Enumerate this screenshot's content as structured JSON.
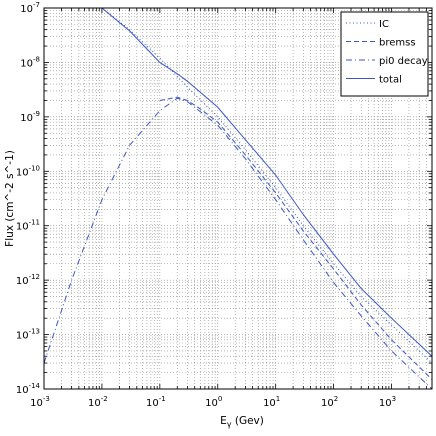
{
  "chart_data": {
    "type": "line",
    "title": "",
    "xlabel": {
      "base": "E",
      "subscript": "γ",
      "rest": " (Gev)"
    },
    "ylabel": "Flux (cm^-2 s^-1)",
    "xscale": "log",
    "yscale": "log",
    "xlim": [
      0.001,
      5000
    ],
    "ylim": [
      1e-14,
      1e-07
    ],
    "grid": true,
    "legend_position": "top-right",
    "x_ticks": [
      {
        "base": "10",
        "exp": "-3",
        "value": 0.001
      },
      {
        "base": "10",
        "exp": "-2",
        "value": 0.01
      },
      {
        "base": "10",
        "exp": "-1",
        "value": 0.1
      },
      {
        "base": "10",
        "exp": "0",
        "value": 1
      },
      {
        "base": "10",
        "exp": "1",
        "value": 10
      },
      {
        "base": "10",
        "exp": "2",
        "value": 100
      },
      {
        "base": "10",
        "exp": "3",
        "value": 1000
      }
    ],
    "y_ticks": [
      {
        "base": "10",
        "exp": "-14",
        "value": 1e-14
      },
      {
        "base": "10",
        "exp": "-13",
        "value": 1e-13
      },
      {
        "base": "10",
        "exp": "-12",
        "value": 1e-12
      },
      {
        "base": "10",
        "exp": "-11",
        "value": 1e-11
      },
      {
        "base": "10",
        "exp": "-10",
        "value": 1e-10
      },
      {
        "base": "10",
        "exp": "-9",
        "value": 1e-09
      },
      {
        "base": "10",
        "exp": "-8",
        "value": 1e-08
      },
      {
        "base": "10",
        "exp": "-7",
        "value": 1e-07
      }
    ],
    "series": [
      {
        "name": "IC",
        "style": "dotted",
        "color": "#3a57c8",
        "x": [
          0.01,
          0.03,
          0.1,
          0.3,
          1,
          3,
          10,
          30,
          100,
          300,
          1000,
          5000
        ],
        "y": [
          1e-07,
          4e-08,
          1.2e-08,
          3.5e-09,
          1e-09,
          2.5e-10,
          5e-11,
          1e-11,
          2e-12,
          5e-13,
          1.5e-13,
          3e-14
        ]
      },
      {
        "name": "bremss",
        "style": "dashed",
        "color": "#3a57c8",
        "x": [
          0.1,
          0.2,
          0.3,
          0.5,
          1,
          3,
          10,
          30,
          100,
          300,
          1000,
          5000
        ],
        "y": [
          2e-09,
          2.3e-09,
          2e-09,
          1.4e-09,
          8e-10,
          2e-10,
          4e-11,
          8e-12,
          1.6e-12,
          3.5e-13,
          8e-14,
          1.5e-14
        ]
      },
      {
        "name": "pi0 decay",
        "style": "dashdot",
        "color": "#3a57c8",
        "x": [
          0.001,
          0.003,
          0.01,
          0.03,
          0.1,
          0.2,
          0.3,
          1,
          3,
          10,
          30,
          100,
          300,
          1000,
          5000
        ],
        "y": [
          3e-14,
          1e-12,
          3e-11,
          3e-10,
          1.3e-09,
          2.2e-09,
          1.9e-09,
          7e-10,
          1.7e-10,
          3e-11,
          5.5e-12,
          9e-13,
          2.2e-13,
          5e-14,
          1e-14
        ]
      },
      {
        "name": "total",
        "style": "solid",
        "color": "#3a57c8",
        "x": [
          0.01,
          0.03,
          0.1,
          0.2,
          0.3,
          1,
          3,
          10,
          30,
          100,
          300,
          1000,
          5000
        ],
        "y": [
          1e-07,
          3.8e-08,
          1e-08,
          6.2e-09,
          4.5e-09,
          1.5e-09,
          3.8e-10,
          8.5e-11,
          1.6e-11,
          3e-12,
          7e-13,
          2e-13,
          4e-14
        ]
      }
    ]
  }
}
